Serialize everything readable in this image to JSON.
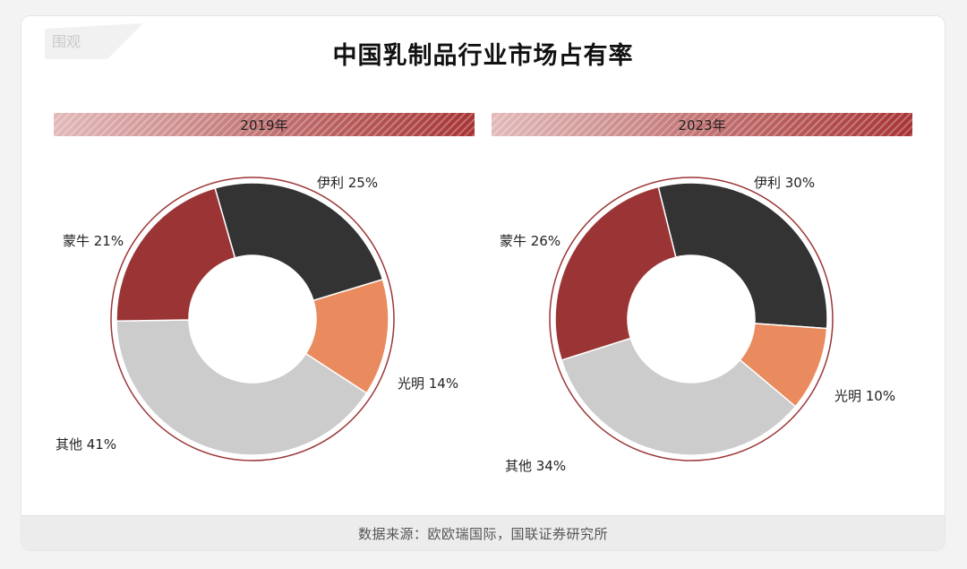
{
  "watermark_text": "围观",
  "title": "中国乳制品行业市场占有率",
  "source": "数据来源：欧欧瑞国际，国联证券研究所",
  "colors": {
    "yili": "#333333",
    "guangming": "#e98b5f",
    "other": "#cccccc",
    "mengniu": "#9b3535",
    "ring": "#9b3535"
  },
  "chart_data": [
    {
      "type": "pie",
      "title": "2019年",
      "slices": [
        {
          "label": "伊利",
          "value": 25,
          "text": "伊利  25%",
          "color": "#333333"
        },
        {
          "label": "光明",
          "value": 14,
          "text": "光明  14%",
          "color": "#e98b5f"
        },
        {
          "label": "其他",
          "value": 41,
          "text": "其他  41%",
          "color": "#cccccc"
        },
        {
          "label": "蒙牛",
          "value": 21,
          "text": "蒙牛  21%",
          "color": "#9b3535"
        }
      ]
    },
    {
      "type": "pie",
      "title": "2023年",
      "slices": [
        {
          "label": "伊利",
          "value": 30,
          "text": "伊利  30%",
          "color": "#333333"
        },
        {
          "label": "光明",
          "value": 10,
          "text": "光明  10%",
          "color": "#e98b5f"
        },
        {
          "label": "其他",
          "value": 34,
          "text": "其他  34%",
          "color": "#cccccc"
        },
        {
          "label": "蒙牛",
          "value": 26,
          "text": "蒙牛  26%",
          "color": "#9b3535"
        }
      ]
    }
  ]
}
